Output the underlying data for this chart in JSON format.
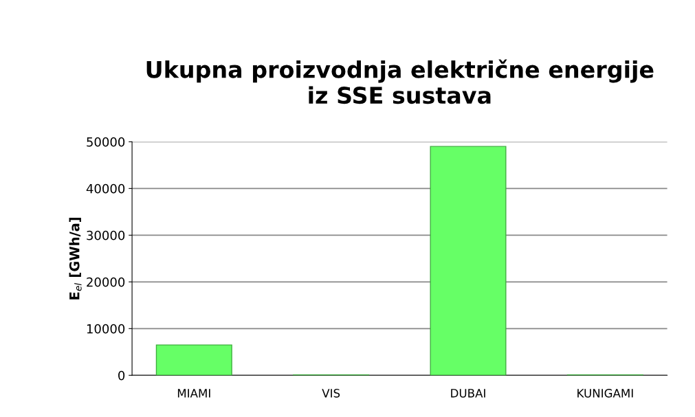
{
  "chart_data": {
    "type": "bar",
    "title": "Ukupna proizvodnja električne energije\niz SSE sustava",
    "ylabel": "E$_{el}$ [GWh/a]",
    "categories": [
      "MIAMI",
      "VIS",
      "DUBAI",
      "KUNIGAMI"
    ],
    "values": [
      6500,
      100,
      49000,
      100
    ],
    "color": "#66ff66",
    "ylim": [
      0,
      50000
    ],
    "yticks": [
      0,
      10000,
      20000,
      30000,
      40000,
      50000
    ],
    "grid": "y",
    "legend": false
  }
}
